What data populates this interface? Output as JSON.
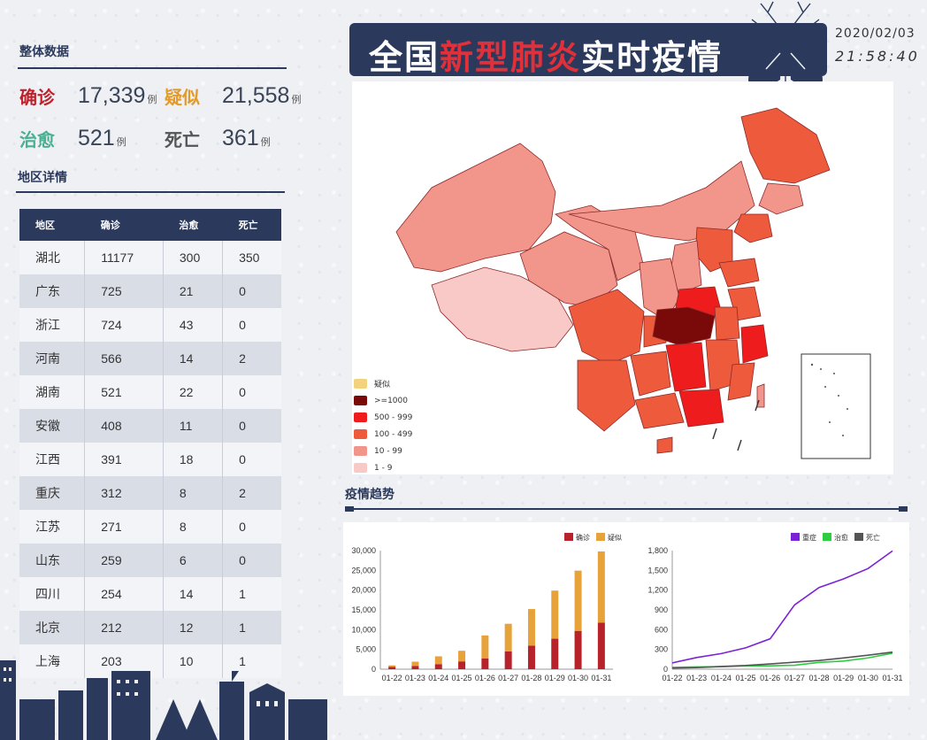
{
  "overview": {
    "title": "整体数据",
    "confirmed_label": "确诊",
    "confirmed_value": "17,339",
    "suspected_label": "疑似",
    "suspected_value": "21,558",
    "cured_label": "治愈",
    "cured_value": "521",
    "dead_label": "死亡",
    "dead_value": "361",
    "unit": "例"
  },
  "regions": {
    "title": "地区详情",
    "headers": [
      "地区",
      "确诊",
      "治愈",
      "死亡"
    ],
    "rows": [
      [
        "湖北",
        "11177",
        "300",
        "350"
      ],
      [
        "广东",
        "725",
        "21",
        "0"
      ],
      [
        "浙江",
        "724",
        "43",
        "0"
      ],
      [
        "河南",
        "566",
        "14",
        "2"
      ],
      [
        "湖南",
        "521",
        "22",
        "0"
      ],
      [
        "安徽",
        "408",
        "11",
        "0"
      ],
      [
        "江西",
        "391",
        "18",
        "0"
      ],
      [
        "重庆",
        "312",
        "8",
        "2"
      ],
      [
        "江苏",
        "271",
        "8",
        "0"
      ],
      [
        "山东",
        "259",
        "6",
        "0"
      ],
      [
        "四川",
        "254",
        "14",
        "1"
      ],
      [
        "北京",
        "212",
        "12",
        "1"
      ],
      [
        "上海",
        "203",
        "10",
        "1"
      ]
    ]
  },
  "header": {
    "title_a": "全国",
    "title_b": "新型肺炎",
    "title_c": "实时疫情",
    "date": "2020/02/03",
    "time": "21:58:40"
  },
  "map": {
    "legend": [
      {
        "label": "疑似",
        "color": "#f2d27a"
      },
      {
        "label": ">=1000",
        "color": "#7a0a0a"
      },
      {
        "label": "500 - 999",
        "color": "#ee1c1c"
      },
      {
        "label": "100 - 499",
        "color": "#ee5a3c"
      },
      {
        "label": "10 - 99",
        "color": "#f2958a"
      },
      {
        "label": "1 - 9",
        "color": "#f8c9c6"
      }
    ]
  },
  "trend": {
    "title": "疫情趋势"
  },
  "chart_data": [
    {
      "type": "bar",
      "stacked": true,
      "categories": [
        "01-22",
        "01-23",
        "01-24",
        "01-25",
        "01-26",
        "01-27",
        "01-28",
        "01-29",
        "01-30",
        "01-31"
      ],
      "series": [
        {
          "name": "确诊",
          "color": "#b8222a",
          "values": [
            571,
            830,
            1287,
            1975,
            2744,
            4515,
            5974,
            7711,
            9692,
            11791
          ]
        },
        {
          "name": "疑似",
          "color": "#e8a23a",
          "values": [
            393,
            1072,
            1965,
            2684,
            5794,
            6973,
            9239,
            12167,
            15238,
            17988
          ]
        }
      ],
      "ylim": [
        0,
        30000
      ],
      "yticks": [
        "0",
        "5,000",
        "10,000",
        "15,000",
        "20,000",
        "25,000",
        "30,000"
      ],
      "legend_position": "top-right"
    },
    {
      "type": "line",
      "categories": [
        "01-22",
        "01-23",
        "01-24",
        "01-25",
        "01-26",
        "01-27",
        "01-28",
        "01-29",
        "01-30",
        "01-31"
      ],
      "series": [
        {
          "name": "重症",
          "color": "#7b22d6",
          "values": [
            95,
            177,
            237,
            324,
            461,
            976,
            1239,
            1370,
            1527,
            1795
          ]
        },
        {
          "name": "治愈",
          "color": "#2ecc40",
          "values": [
            28,
            34,
            38,
            49,
            51,
            60,
            103,
            124,
            171,
            243
          ]
        },
        {
          "name": "死亡",
          "color": "#555555",
          "values": [
            17,
            25,
            41,
            56,
            80,
            106,
            132,
            170,
            213,
            259
          ]
        }
      ],
      "ylim": [
        0,
        1800
      ],
      "yticks": [
        "0",
        "300",
        "600",
        "900",
        "1,200",
        "1,500",
        "1,800"
      ],
      "legend_position": "top-right"
    }
  ]
}
